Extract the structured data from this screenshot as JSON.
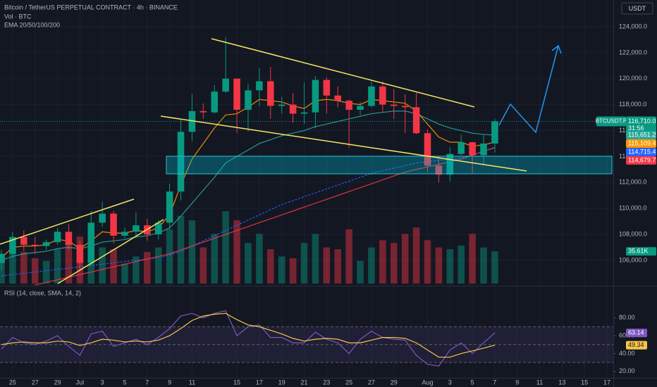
{
  "chart_data": [
    {
      "type": "candlestick",
      "title": "Bitcoin / TetherUS PERPETUAL CONTRACT · 4h · BINANCE",
      "subtitle": "Vol · BTC",
      "indicator": "EMA 20/50/100/200",
      "axis_label": "USDT",
      "symbol_label": "BTCUSDT.P",
      "last_price_label": "116,710.0",
      "countdown": "31:56",
      "categories": [
        null,
        "25",
        null,
        "27",
        null,
        "29",
        null,
        "Jul",
        null,
        "3",
        null,
        "5",
        null,
        "7",
        null,
        "9",
        null,
        "11",
        null,
        null,
        null,
        "15",
        null,
        "17",
        null,
        "19",
        null,
        "21",
        null,
        "23",
        null,
        "25",
        null,
        "27",
        null,
        "29",
        null,
        null,
        "Aug",
        null,
        "3",
        null,
        "5",
        null,
        "7",
        null,
        "9",
        null,
        "11",
        null,
        "13",
        null,
        "15",
        null,
        "17"
      ],
      "open": [
        105800,
        106500,
        107800,
        107200,
        107100,
        107400,
        108200,
        107200,
        105800,
        108900,
        109600,
        107900,
        108200,
        108700,
        108000,
        108900,
        111300,
        115900,
        117500,
        117400,
        119000,
        120000,
        117600,
        119100,
        119800,
        117900,
        118000,
        117300,
        117400,
        119900,
        118700,
        118300,
        117600,
        117900,
        119400,
        118000,
        117900,
        117800,
        115800,
        113300,
        112600,
        114200,
        115100,
        114100,
        115000,
        null,
        null,
        null,
        null,
        null,
        null,
        null,
        null,
        null,
        null
      ],
      "high": [
        106800,
        108200,
        108300,
        107800,
        107600,
        108500,
        108800,
        107500,
        109800,
        110500,
        109800,
        108500,
        109700,
        109200,
        109100,
        111900,
        116900,
        118800,
        118100,
        119500,
        123200,
        120000,
        119600,
        120800,
        120900,
        118600,
        118900,
        119700,
        120200,
        120100,
        119400,
        118400,
        118200,
        119800,
        119800,
        119200,
        118800,
        118900,
        116100,
        114000,
        114700,
        115700,
        115100,
        115700,
        116900,
        null,
        null,
        null,
        null,
        null,
        null,
        null,
        null,
        null,
        null
      ],
      "low": [
        105200,
        106200,
        106700,
        106500,
        106800,
        107200,
        106800,
        105300,
        105600,
        108600,
        107300,
        107700,
        107900,
        107500,
        107600,
        108400,
        110600,
        115200,
        116900,
        117300,
        118900,
        115800,
        115900,
        117900,
        116900,
        117300,
        116600,
        116500,
        116200,
        117300,
        117800,
        114700,
        117200,
        117800,
        117400,
        116900,
        115800,
        115700,
        112800,
        112000,
        112100,
        114100,
        112700,
        113400,
        114300,
        null,
        null,
        null,
        null,
        null,
        null,
        null,
        null,
        null,
        null
      ],
      "close": [
        106500,
        107800,
        107200,
        107100,
        107400,
        108200,
        107200,
        105800,
        108900,
        109600,
        107900,
        108200,
        108700,
        108000,
        108900,
        111300,
        115900,
        117500,
        117400,
        119000,
        120000,
        117600,
        119100,
        119800,
        117900,
        118000,
        117300,
        117400,
        119900,
        118700,
        118300,
        117600,
        117900,
        119400,
        118000,
        117900,
        117800,
        115800,
        113300,
        112600,
        114200,
        115100,
        114100,
        115000,
        116710,
        null,
        null,
        null,
        null,
        null,
        null,
        null,
        null,
        null,
        null
      ],
      "up_color": "#089981",
      "down_color": "#f23645",
      "ylim": [
        104100,
        126060
      ],
      "yticks": [
        {
          "value": 106000,
          "label": "106,000.0"
        },
        {
          "value": 108000,
          "label": "108,000.0"
        },
        {
          "value": 110000,
          "label": "110,000.0"
        },
        {
          "value": 112000,
          "label": "112,000.0"
        },
        {
          "value": 114000,
          "label": "114,000.0"
        },
        {
          "value": 116000,
          "label": "116,000.0"
        },
        {
          "value": 118000,
          "label": "118,000.0"
        },
        {
          "value": 120000,
          "label": "120,000.0"
        },
        {
          "value": 122000,
          "label": "122,000.0"
        },
        {
          "value": 124000,
          "label": "124,000.0"
        }
      ],
      "grid": true,
      "ema": [
        {
          "color": "#26a69a",
          "price_label": "115,651.2",
          "values": [
            106000,
            106300,
            106500,
            106600,
            106700,
            106900,
            107000,
            106900,
            107100,
            107400,
            107500,
            107600,
            107800,
            107900,
            108100,
            108500,
            109400,
            110400,
            111400,
            112400,
            113500,
            114000,
            114500,
            115000,
            115300,
            115600,
            115800,
            116000,
            116300,
            116500,
            116700,
            116900,
            117100,
            117300,
            117400,
            117500,
            117500,
            117300,
            116900,
            116500,
            116200,
            116000,
            115800,
            115700,
            115651.2,
            null,
            null,
            null,
            null,
            null,
            null,
            null,
            null,
            null,
            null
          ]
        },
        {
          "color": "#ff9800",
          "price_label": "115,109.4",
          "values": [
            106200,
            107000,
            107100,
            107100,
            107200,
            107600,
            107500,
            106900,
            107500,
            108200,
            108100,
            108100,
            108300,
            108200,
            108500,
            109500,
            111800,
            113800,
            115000,
            116200,
            117200,
            117300,
            117800,
            118400,
            118300,
            118200,
            117900,
            117700,
            118300,
            118400,
            118300,
            118100,
            118000,
            118400,
            118300,
            118200,
            118100,
            117500,
            116500,
            115500,
            115100,
            115100,
            114800,
            114900,
            115109.4,
            null,
            null,
            null,
            null,
            null,
            null,
            null,
            null,
            null,
            null
          ]
        },
        {
          "color": "#2962ff",
          "price_label": "114,715.4",
          "values": [
            104800,
            104900,
            105000,
            105100,
            105200,
            105300,
            105400,
            105500,
            105600,
            105700,
            105800,
            105900,
            106000,
            106100,
            106200,
            106400,
            106700,
            107100,
            107500,
            107900,
            108300,
            108700,
            109100,
            109500,
            109900,
            110300,
            110600,
            110900,
            111200,
            111500,
            111800,
            112100,
            112400,
            112700,
            112900,
            113100,
            113300,
            113500,
            113600,
            113700,
            113800,
            113900,
            114100,
            114400,
            114715.4,
            null,
            null,
            null,
            null,
            null,
            null,
            null,
            null,
            null,
            null
          ]
        },
        {
          "color": "#f23645",
          "price_label": "114,679.7",
          "values": [
            103500,
            103700,
            103900,
            104100,
            104300,
            104500,
            104700,
            104900,
            105100,
            105300,
            105500,
            105700,
            105900,
            106100,
            106300,
            106500,
            106800,
            107100,
            107400,
            107700,
            108000,
            108300,
            108600,
            108900,
            109200,
            109500,
            109800,
            110100,
            110400,
            110700,
            111000,
            111300,
            111600,
            111900,
            112200,
            112500,
            112800,
            113000,
            113200,
            113400,
            113600,
            113800,
            114100,
            114400,
            114679.7,
            null,
            null,
            null,
            null,
            null,
            null,
            null,
            null,
            null,
            null
          ]
        }
      ],
      "y2lim": [
        0,
        88000
      ],
      "volume": {
        "axis": "y2",
        "value_label": "35.61K",
        "values": [
          30000,
          42000,
          35000,
          28000,
          25000,
          38000,
          45000,
          52000,
          48000,
          40000,
          38000,
          22000,
          30000,
          35000,
          40000,
          60000,
          75000,
          70000,
          40000,
          55000,
          80000,
          70000,
          45000,
          55000,
          38000,
          30000,
          28000,
          45000,
          55000,
          40000,
          38000,
          60000,
          25000,
          40000,
          48000,
          45000,
          55000,
          62000,
          48000,
          40000,
          38000,
          42000,
          55000,
          40000,
          35610,
          null,
          null,
          null,
          null,
          null,
          null,
          null,
          null,
          null,
          null
        ]
      }
    },
    {
      "type": "line",
      "title": "RSI (14, close, SMA, 14, 2)",
      "ylim": [
        12.8,
        114.4
      ],
      "yticks": [
        {
          "value": 20,
          "label": "20.00"
        },
        {
          "value": 40,
          "label": "40.00"
        },
        {
          "value": 60,
          "label": "60.00"
        },
        {
          "value": 80,
          "label": "80.00"
        }
      ],
      "bands": [
        70,
        50,
        30
      ],
      "band_color": "#7e57c2",
      "series": [
        {
          "color": "#7e57c2",
          "value_label": "63.14",
          "values": [
            45,
            58,
            52,
            50,
            54,
            60,
            48,
            38,
            62,
            65,
            48,
            52,
            56,
            50,
            58,
            68,
            82,
            85,
            80,
            85,
            88,
            60,
            70,
            72,
            58,
            58,
            52,
            52,
            64,
            56,
            52,
            40,
            56,
            65,
            58,
            56,
            55,
            38,
            28,
            26,
            44,
            52,
            40,
            52,
            63.14,
            null,
            null,
            null,
            null,
            null,
            null,
            null,
            null,
            null,
            null
          ]
        },
        {
          "color": "#f7c548",
          "value_label": "49.34",
          "values": [
            50,
            52,
            53,
            52,
            52,
            54,
            53,
            49,
            52,
            56,
            55,
            53,
            54,
            53,
            55,
            60,
            68,
            77,
            82,
            84,
            85,
            78,
            72,
            70,
            66,
            62,
            57,
            54,
            56,
            57,
            56,
            52,
            52,
            55,
            58,
            58,
            57,
            52,
            44,
            36,
            36,
            40,
            43,
            46,
            49.34,
            null,
            null,
            null,
            null,
            null,
            null,
            null,
            null,
            null,
            null
          ]
        }
      ]
    }
  ]
}
